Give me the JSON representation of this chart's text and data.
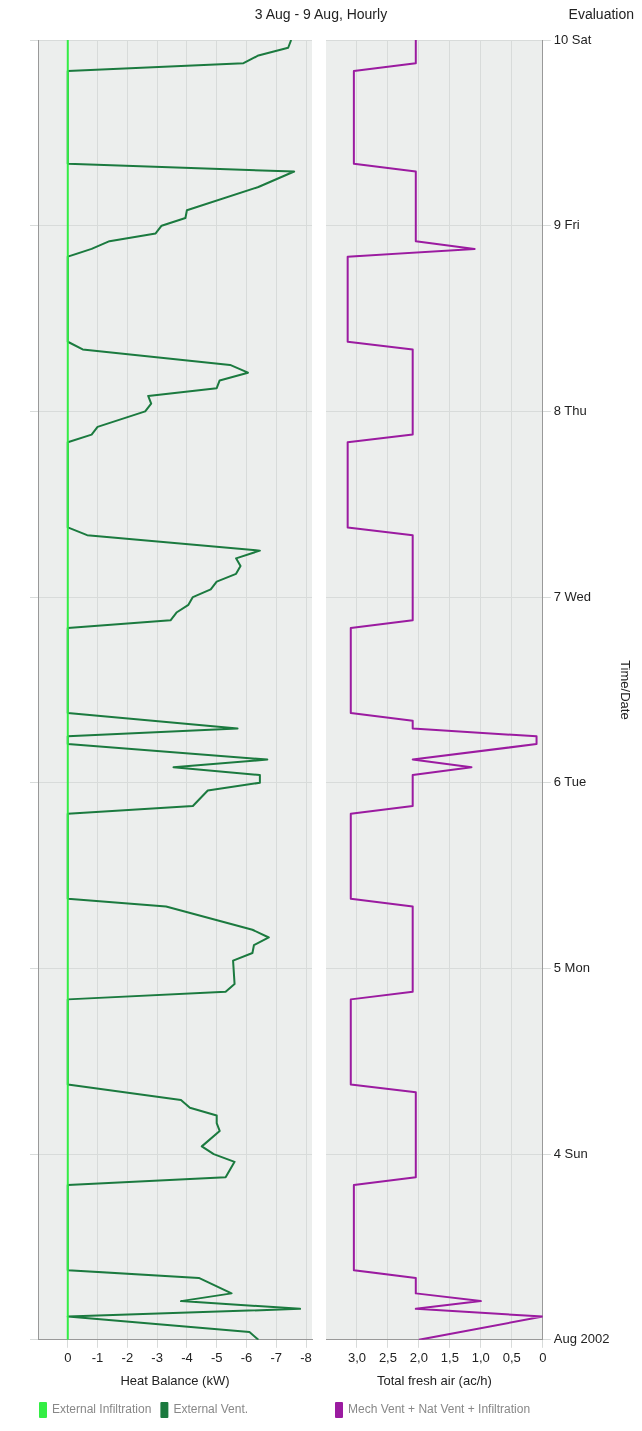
{
  "chart_data": [
    {
      "type": "line",
      "orientation": "horizontal",
      "title": "3 Aug - 9 Aug, Hourly",
      "annotations": [
        "Evaluation"
      ],
      "xlabel": "Heat Balance (kW)",
      "xlim": [
        1,
        -8.2
      ],
      "xticks": [
        0,
        -1,
        -2,
        -3,
        -4,
        -5,
        -6,
        -7,
        -8
      ],
      "ylim": [
        "2002-08-03",
        "2002-08-10"
      ],
      "yticks": [
        {
          "value": "2002-08-03",
          "label": null
        },
        {
          "value": "2002-08-04",
          "label": null
        },
        {
          "value": "2002-08-05",
          "label": null
        },
        {
          "value": "2002-08-06",
          "label": null
        },
        {
          "value": "2002-08-07",
          "label": null
        },
        {
          "value": "2002-08-08",
          "label": null
        },
        {
          "value": "2002-08-09",
          "label": null
        },
        {
          "value": "2002-08-10",
          "label": null
        }
      ],
      "grid": true,
      "legend": "bottom left",
      "tick_labels": "x",
      "series": [
        {
          "name": "External Infiltration",
          "color": "#33ee44",
          "x": [
            "2002-08-03T00:00",
            "2002-08-10T00:00"
          ],
          "values": [
            0,
            0
          ]
        },
        {
          "name": "External Vent.",
          "color": "#1b7a3f",
          "x": [
            "2002-08-03T00:00",
            "2002-08-03T01:00",
            "2002-08-03T03:00",
            "2002-08-03T04:00",
            "2002-08-03T05:00",
            "2002-08-03T06:00",
            "2002-08-03T08:00",
            "2002-08-03T09:00",
            "2002-08-03T20:00",
            "2002-08-03T21:00",
            "2002-08-03T23:00",
            "2002-08-04T00:00",
            "2002-08-04T01:00",
            "2002-08-04T03:00",
            "2002-08-04T04:00",
            "2002-08-04T05:00",
            "2002-08-04T06:00",
            "2002-08-04T07:00",
            "2002-08-04T09:00",
            "2002-08-04T20:00",
            "2002-08-04T21:00",
            "2002-08-04T22:00",
            "2002-08-05T01:00",
            "2002-08-05T02:00",
            "2002-08-05T03:00",
            "2002-08-05T04:00",
            "2002-08-05T05:00",
            "2002-08-05T08:00",
            "2002-08-05T09:00",
            "2002-08-05T20:00",
            "2002-08-05T21:00",
            "2002-08-05T23:00",
            "2002-08-06T00:00",
            "2002-08-06T01:00",
            "2002-08-06T02:00",
            "2002-08-06T03:00",
            "2002-08-06T05:00",
            "2002-08-06T06:00",
            "2002-08-06T07:00",
            "2002-08-06T09:00",
            "2002-08-06T20:00",
            "2002-08-06T21:00",
            "2002-08-06T22:00",
            "2002-08-06T23:00",
            "2002-08-07T00:00",
            "2002-08-07T01:00",
            "2002-08-07T02:00",
            "2002-08-07T03:00",
            "2002-08-07T04:00",
            "2002-08-07T05:00",
            "2002-08-07T06:00",
            "2002-08-07T08:00",
            "2002-08-07T09:00",
            "2002-08-07T20:00",
            "2002-08-07T21:00",
            "2002-08-07T22:00",
            "2002-08-08T00:00",
            "2002-08-08T01:00",
            "2002-08-08T02:00",
            "2002-08-08T03:00",
            "2002-08-08T04:00",
            "2002-08-08T05:00",
            "2002-08-08T06:00",
            "2002-08-08T08:00",
            "2002-08-08T09:00",
            "2002-08-08T20:00",
            "2002-08-08T21:00",
            "2002-08-08T22:00",
            "2002-08-08T23:00",
            "2002-08-09T00:00",
            "2002-08-09T01:00",
            "2002-08-09T02:00",
            "2002-08-09T05:00",
            "2002-08-09T07:00",
            "2002-08-09T08:00",
            "2002-08-09T20:00",
            "2002-08-09T21:00",
            "2002-08-09T22:00",
            "2002-08-09T23:00",
            "2002-08-10T00:00"
          ],
          "values": [
            -6.4,
            -6.1,
            0,
            -7.8,
            -3.8,
            -5.5,
            -4.4,
            0,
            0,
            -5.3,
            -5.6,
            -4.9,
            -4.5,
            -5.1,
            -5.0,
            -5.0,
            -4.1,
            -3.8,
            0,
            0,
            -5.3,
            -5.6,
            -5.55,
            -6.2,
            -6.25,
            -6.75,
            -6.2,
            -3.3,
            0,
            0,
            -4.2,
            -4.7,
            -6.45,
            -6.45,
            -3.55,
            -6.7,
            0,
            0,
            -5.7,
            0,
            0,
            -3.45,
            -3.65,
            -4.05,
            -4.2,
            -4.8,
            -5.0,
            -5.65,
            -5.8,
            -5.65,
            -6.45,
            -0.65,
            0,
            0,
            -0.8,
            -1.0,
            -2.6,
            -2.8,
            -2.7,
            -5.0,
            -5.1,
            -6.05,
            -5.45,
            -0.5,
            0,
            0,
            -0.8,
            -1.4,
            -2.95,
            -3.15,
            -3.95,
            -4.0,
            -6.4,
            -7.6,
            0,
            0,
            -5.9,
            -6.4,
            -7.4,
            -7.5
          ]
        }
      ]
    },
    {
      "type": "line",
      "orientation": "horizontal",
      "xlabel": "Total fresh air (ac/h)",
      "ylabel": "Time/Date",
      "xlim": [
        3.5,
        0
      ],
      "xticks": [
        {
          "value": 3,
          "label": "3,0"
        },
        {
          "value": 2.5,
          "label": "2,5"
        },
        {
          "value": 2,
          "label": "2,0"
        },
        {
          "value": 1.5,
          "label": "1,5"
        },
        {
          "value": 1,
          "label": "1,0"
        },
        {
          "value": 0.5,
          "label": "0,5"
        },
        0
      ],
      "ylim": [
        "2002-08-03",
        "2002-08-10"
      ],
      "yticks": [
        {
          "value": "2002-08-03",
          "label": "Aug 2002"
        },
        {
          "value": "2002-08-04",
          "label": "4 Sun"
        },
        {
          "value": "2002-08-05",
          "label": "5 Mon"
        },
        {
          "value": "2002-08-06",
          "label": "6 Tue"
        },
        {
          "value": "2002-08-07",
          "label": "7 Wed"
        },
        {
          "value": "2002-08-08",
          "label": "8 Thu"
        },
        {
          "value": "2002-08-09",
          "label": "9 Fri"
        },
        {
          "value": "2002-08-10",
          "label": "10 Sat"
        }
      ],
      "grid": true,
      "legend": "bottom left",
      "series": [
        {
          "name": "Mech Vent + Nat Vent + Infiltration",
          "color": "#9b1ba0",
          "x": [
            "2002-08-03T00:00",
            "2002-08-03T03:00",
            "2002-08-03T04:00",
            "2002-08-03T05:00",
            "2002-08-03T06:00",
            "2002-08-03T08:00",
            "2002-08-03T09:00",
            "2002-08-03T20:00",
            "2002-08-03T21:00",
            "2002-08-04T08:00",
            "2002-08-04T09:00",
            "2002-08-04T20:00",
            "2002-08-04T21:00",
            "2002-08-05T08:00",
            "2002-08-05T09:00",
            "2002-08-05T20:00",
            "2002-08-05T21:00",
            "2002-08-06T01:00",
            "2002-08-06T02:00",
            "2002-08-06T03:00",
            "2002-08-06T05:00",
            "2002-08-06T06:00",
            "2002-08-06T07:00",
            "2002-08-06T08:00",
            "2002-08-06T09:00",
            "2002-08-06T20:00",
            "2002-08-06T21:00",
            "2002-08-07T08:00",
            "2002-08-07T09:00",
            "2002-08-07T20:00",
            "2002-08-07T21:00",
            "2002-08-08T08:00",
            "2002-08-08T09:00",
            "2002-08-08T20:00",
            "2002-08-08T21:00",
            "2002-08-08T22:00",
            "2002-08-09T07:00",
            "2002-08-09T08:00",
            "2002-08-09T20:00",
            "2002-08-09T21:00",
            "2002-08-10T00:00"
          ],
          "values": [
            2.0,
            0,
            2.05,
            1.0,
            2.05,
            2.05,
            3.05,
            3.05,
            2.05,
            2.05,
            3.1,
            3.1,
            2.1,
            2.1,
            3.1,
            3.1,
            2.1,
            2.1,
            1.15,
            2.1,
            0.1,
            0.1,
            2.1,
            2.1,
            3.1,
            3.1,
            2.1,
            2.1,
            3.15,
            3.15,
            2.1,
            2.1,
            3.15,
            3.15,
            1.1,
            2.05,
            2.05,
            3.05,
            3.05,
            2.05,
            2.05
          ]
        }
      ]
    }
  ]
}
